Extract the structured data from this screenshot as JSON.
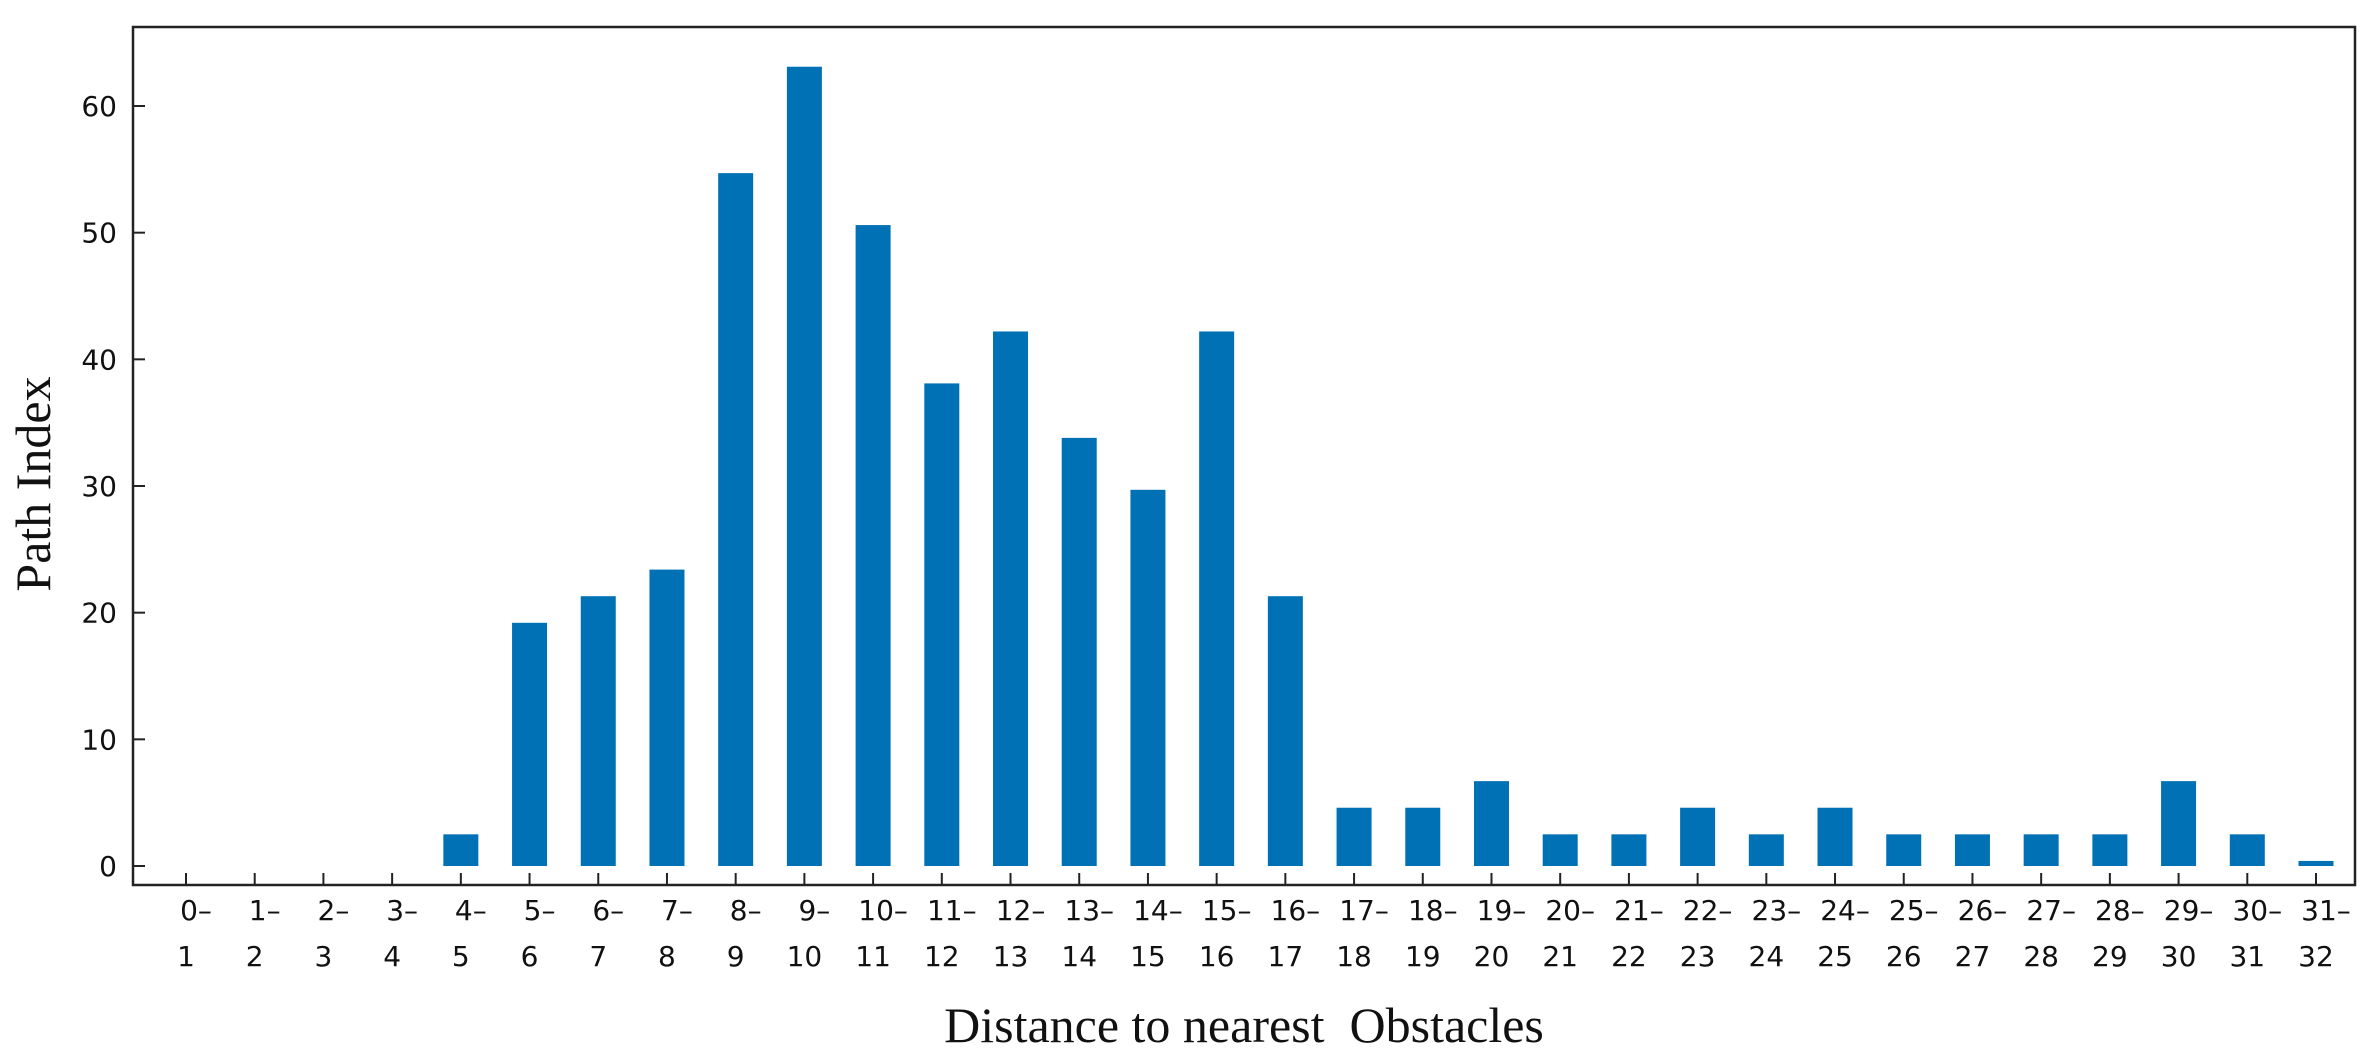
{
  "chart_data": {
    "type": "bar",
    "title": "",
    "xlabel": "Distance to nearest  Obstacles",
    "ylabel": "Path Index",
    "ylim": [
      -2,
      66
    ],
    "yticks": [
      0,
      10,
      20,
      30,
      40,
      50,
      60
    ],
    "bar_color": "#0071b5",
    "grid": false,
    "categories": [
      [
        "0–",
        "1"
      ],
      [
        "1–",
        "2"
      ],
      [
        "2–",
        "3"
      ],
      [
        "3–",
        "4"
      ],
      [
        "4–",
        "5"
      ],
      [
        "5–",
        "6"
      ],
      [
        "6–",
        "7"
      ],
      [
        "7–",
        "8"
      ],
      [
        "8–",
        "9"
      ],
      [
        "9–",
        "10"
      ],
      [
        "10–",
        "11"
      ],
      [
        "11–",
        "12"
      ],
      [
        "12–",
        "13"
      ],
      [
        "13–",
        "14"
      ],
      [
        "14–",
        "15"
      ],
      [
        "15–",
        "16"
      ],
      [
        "16–",
        "17"
      ],
      [
        "17–",
        "18"
      ],
      [
        "18–",
        "19"
      ],
      [
        "19–",
        "20"
      ],
      [
        "20–",
        "21"
      ],
      [
        "21–",
        "22"
      ],
      [
        "22–",
        "23"
      ],
      [
        "23–",
        "24"
      ],
      [
        "24–",
        "25"
      ],
      [
        "25–",
        "26"
      ],
      [
        "26–",
        "27"
      ],
      [
        "27–",
        "28"
      ],
      [
        "28–",
        "29"
      ],
      [
        "29–",
        "30"
      ],
      [
        "30–",
        "31"
      ],
      [
        "31–",
        "32"
      ]
    ],
    "values": [
      0,
      0,
      0,
      0,
      2.5,
      19.2,
      21.3,
      23.4,
      54.7,
      63.1,
      50.6,
      38.1,
      42.2,
      33.8,
      29.7,
      42.2,
      21.3,
      4.6,
      4.6,
      6.7,
      2.5,
      2.5,
      4.6,
      2.5,
      4.6,
      2.5,
      2.5,
      2.5,
      2.5,
      6.7,
      2.5,
      0.4
    ]
  }
}
